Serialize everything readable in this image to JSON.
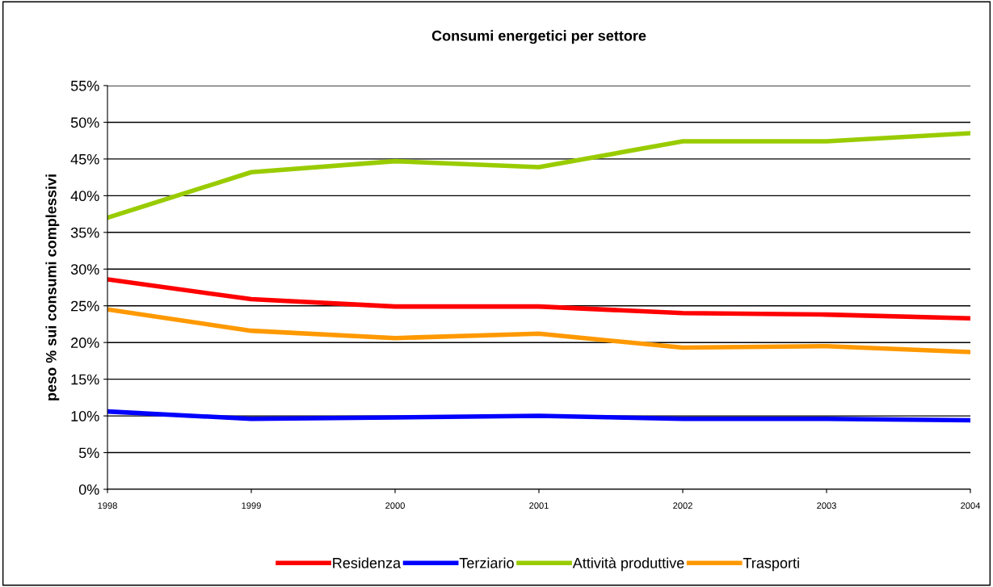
{
  "chart_data": {
    "type": "line",
    "title": "Consumi energetici per settore",
    "ylabel": "peso % sui consumi complessivi",
    "x": [
      1998,
      1999,
      2000,
      2001,
      2002,
      2003,
      2004
    ],
    "series": [
      {
        "name": "Residenza",
        "color": "#ff0000",
        "values": [
          28.6,
          25.9,
          24.9,
          24.9,
          24.0,
          23.8,
          23.3
        ]
      },
      {
        "name": "Terziario",
        "color": "#0000ff",
        "values": [
          10.6,
          9.6,
          9.8,
          10.0,
          9.6,
          9.6,
          9.4
        ]
      },
      {
        "name": "Attività produttive",
        "color": "#99cc00",
        "values": [
          37.0,
          43.2,
          44.7,
          43.9,
          47.4,
          47.4,
          48.5
        ]
      },
      {
        "name": "Trasporti",
        "color": "#ff9900",
        "values": [
          24.5,
          21.6,
          20.6,
          21.2,
          19.3,
          19.5,
          18.7
        ]
      }
    ],
    "xlim": [
      1998,
      2004
    ],
    "xticks": [
      1998,
      1999,
      2000,
      2001,
      2002,
      2003,
      2004
    ],
    "ylim": [
      0,
      55
    ],
    "yticks": [
      {
        "value": 0,
        "label": "0%"
      },
      {
        "value": 5,
        "label": "5%"
      },
      {
        "value": 10,
        "label": "10%"
      },
      {
        "value": 15,
        "label": "15%"
      },
      {
        "value": 20,
        "label": "20%"
      },
      {
        "value": 25,
        "label": "25%"
      },
      {
        "value": 30,
        "label": "30%"
      },
      {
        "value": 35,
        "label": "35%"
      },
      {
        "value": 40,
        "label": "40%"
      },
      {
        "value": 45,
        "label": "45%"
      },
      {
        "value": 50,
        "label": "50%"
      },
      {
        "value": 55,
        "label": "55%"
      }
    ],
    "grid": "y",
    "legend": "bottom",
    "marker": "none",
    "line_style": "solid"
  }
}
